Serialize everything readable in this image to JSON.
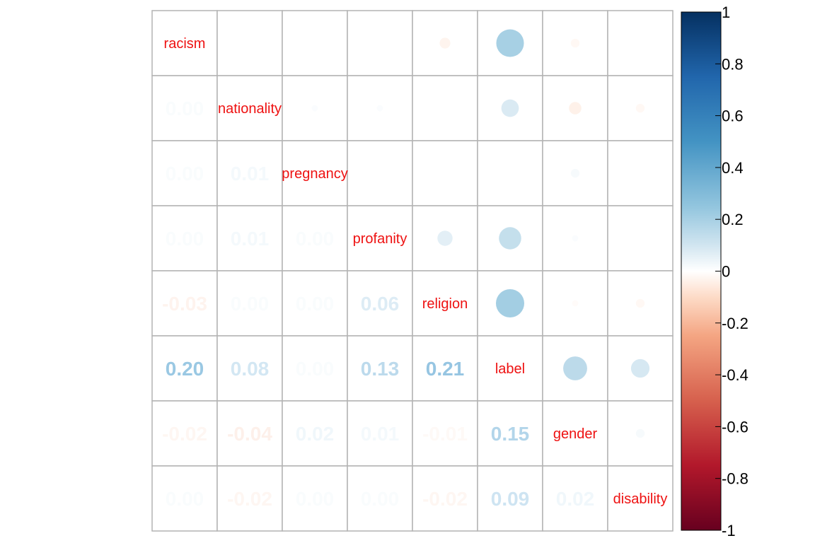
{
  "chart_data": {
    "type": "heatmap",
    "variables": [
      "racism",
      "nationality",
      "pregnancy",
      "profanity",
      "religion",
      "label",
      "gender",
      "disability"
    ],
    "upper_display": "circle",
    "lower_display": "number",
    "diagonal_text_color": "#ee1111",
    "matrix": [
      [
        1.0,
        0.0,
        0.0,
        0.0,
        -0.03,
        0.2,
        -0.02,
        0.0
      ],
      [
        0.0,
        1.0,
        0.01,
        0.01,
        0.0,
        0.08,
        -0.04,
        -0.02
      ],
      [
        0.0,
        0.01,
        1.0,
        0.0,
        0.0,
        0.0,
        0.02,
        0.0
      ],
      [
        0.0,
        0.01,
        0.0,
        1.0,
        0.06,
        0.13,
        0.01,
        0.0
      ],
      [
        -0.03,
        0.0,
        0.0,
        0.06,
        1.0,
        0.21,
        -0.01,
        -0.02
      ],
      [
        0.2,
        0.08,
        0.0,
        0.13,
        0.21,
        1.0,
        0.15,
        0.09
      ],
      [
        -0.02,
        -0.04,
        0.02,
        0.01,
        -0.01,
        0.15,
        1.0,
        0.02
      ],
      [
        0.0,
        -0.02,
        0.0,
        0.0,
        -0.02,
        0.09,
        0.02,
        1.0
      ]
    ],
    "lower_labels": [
      [
        "",
        "",
        "",
        "",
        "",
        "",
        "",
        ""
      ],
      [
        "0.00",
        "",
        "",
        "",
        "",
        "",
        "",
        ""
      ],
      [
        "0.00",
        "0.01",
        "",
        "",
        "",
        "",
        "",
        ""
      ],
      [
        "0.00",
        "0.01",
        "0.00",
        "",
        "",
        "",
        "",
        ""
      ],
      [
        "-0.03",
        "0.00",
        "0.00",
        "0.06",
        "",
        "",
        "",
        ""
      ],
      [
        "0.20",
        "0.08",
        "0.00",
        "0.13",
        "0.21",
        "",
        "",
        ""
      ],
      [
        "-0.02",
        "-0.04",
        "0.02",
        "0.01",
        "-0.01",
        "0.15",
        "",
        ""
      ],
      [
        "0.00",
        "-0.02",
        "0.00",
        "0.00",
        "-0.02",
        "0.09",
        "0.02",
        ""
      ]
    ],
    "colorbar": {
      "range": [
        -1,
        1
      ],
      "ticks": [
        "1",
        "0.8",
        "0.6",
        "0.4",
        "0.2",
        "0",
        "-0.2",
        "-0.4",
        "-0.6",
        "-0.8",
        "-1"
      ],
      "stops": [
        {
          "v": -1.0,
          "c": "#67001f"
        },
        {
          "v": -0.75,
          "c": "#b2182b"
        },
        {
          "v": -0.5,
          "c": "#d6604d"
        },
        {
          "v": -0.25,
          "c": "#f4a582"
        },
        {
          "v": -0.1,
          "c": "#fddbc7"
        },
        {
          "v": 0.0,
          "c": "#ffffff"
        },
        {
          "v": 0.1,
          "c": "#d1e5f0"
        },
        {
          "v": 0.25,
          "c": "#92c5de"
        },
        {
          "v": 0.5,
          "c": "#4393c3"
        },
        {
          "v": 0.75,
          "c": "#2166ac"
        },
        {
          "v": 1.0,
          "c": "#053061"
        }
      ]
    }
  }
}
